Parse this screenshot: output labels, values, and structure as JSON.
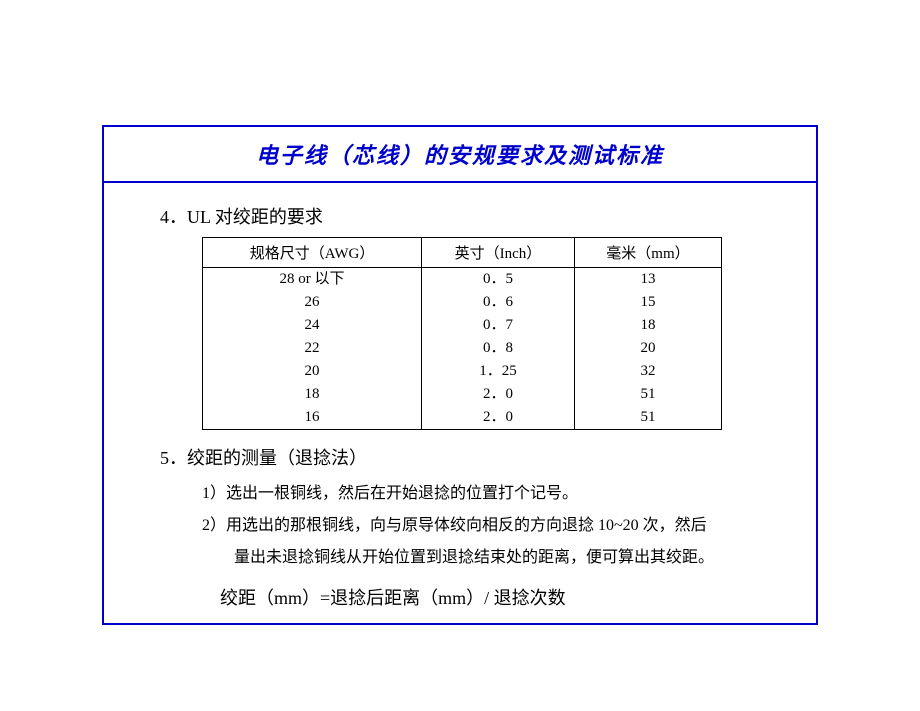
{
  "title": "电子线（芯线）的安规要求及测试标准",
  "section4": {
    "heading": "4．UL 对绞距的要求",
    "table": {
      "headers": [
        "规格尺寸（AWG）",
        "英寸（Inch）",
        "毫米（mm）"
      ],
      "rows": [
        [
          "28 or  以下",
          "0．5",
          "13"
        ],
        [
          "26",
          "0．6",
          "15"
        ],
        [
          "24",
          "0．7",
          "18"
        ],
        [
          "22",
          "0．8",
          "20"
        ],
        [
          "20",
          "1．25",
          "32"
        ],
        [
          "18",
          "2．0",
          "51"
        ],
        [
          "16",
          "2．0",
          "51"
        ]
      ]
    }
  },
  "section5": {
    "heading": "5．绞距的测量（退捻法）",
    "items": [
      "1）选出一根铜线，然后在开始退捻的位置打个记号。",
      "2）用选出的那根铜线，向与原导体绞向相反的方向退捻 10~20 次，然后"
    ],
    "item2_sub": "量出未退捻铜线从开始位置到退捻结束处的距离，便可算出其绞距。",
    "formula": "绞距（mm）=退捻后距离（mm）/ 退捻次数"
  },
  "colors": {
    "border": "#0000cc",
    "title_text": "#0000cc",
    "body_text": "#000000",
    "background": "#ffffff",
    "table_border": "#000000"
  },
  "typography": {
    "title_fontsize": 22,
    "heading_fontsize": 18,
    "body_fontsize": 16,
    "table_fontsize": 15,
    "formula_fontsize": 18
  }
}
